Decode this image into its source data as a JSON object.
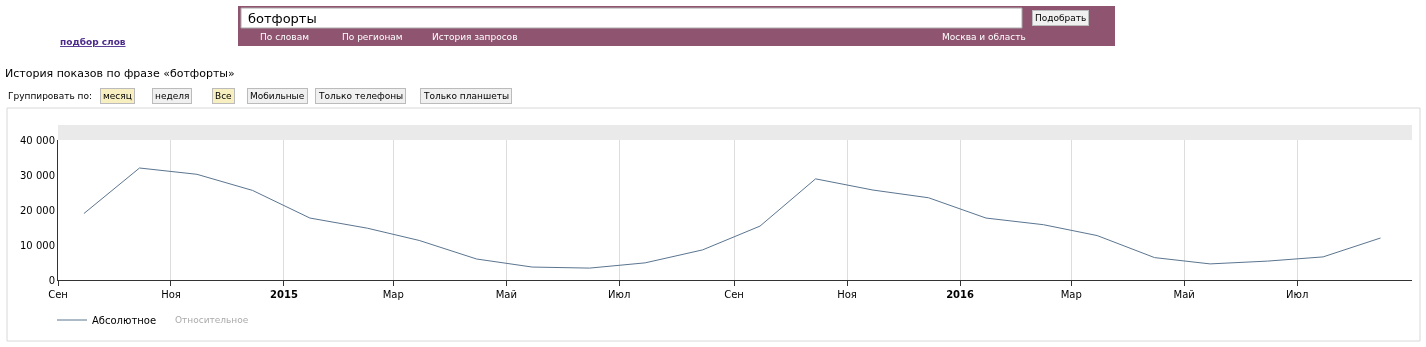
{
  "chart_data": {
    "type": "line",
    "title": "История показов по фразе «ботфорты»",
    "x": [
      "2014-09-15",
      "2014-10-15",
      "2014-11-15",
      "2014-12-15",
      "2015-01-15",
      "2015-02-15",
      "2015-03-15",
      "2015-04-15",
      "2015-05-15",
      "2015-06-15",
      "2015-07-15",
      "2015-08-15",
      "2015-09-15",
      "2015-10-15",
      "2015-11-15",
      "2015-12-15",
      "2016-01-15",
      "2016-02-15",
      "2016-03-15",
      "2016-04-15",
      "2016-05-15",
      "2016-06-15",
      "2016-07-15",
      "2016-08-15"
    ],
    "series": [
      {
        "name": "Абсолютное",
        "color": "#5b7590",
        "values": [
          19000,
          32000,
          30200,
          25600,
          17700,
          14800,
          11300,
          6000,
          3700,
          3400,
          4900,
          8600,
          15400,
          28900,
          25700,
          23500,
          17700,
          15800,
          12700,
          6400,
          4600,
          5400,
          6600,
          12000
        ]
      }
    ],
    "xlim": [
      "2014-09-01",
      "2016-09-01"
    ],
    "xticks": [
      {
        "value": "2014-09-01",
        "label": "Сен"
      },
      {
        "value": "2014-11-01",
        "label": "Ноя"
      },
      {
        "value": "2015-01-01",
        "label": "2015"
      },
      {
        "value": "2015-03-01",
        "label": "Мар"
      },
      {
        "value": "2015-05-01",
        "label": "Май"
      },
      {
        "value": "2015-07-01",
        "label": "Июл"
      },
      {
        "value": "2015-09-01",
        "label": "Сен"
      },
      {
        "value": "2015-11-01",
        "label": "Ноя"
      },
      {
        "value": "2016-01-01",
        "label": "2016"
      },
      {
        "value": "2016-03-01",
        "label": "Мар"
      },
      {
        "value": "2016-05-01",
        "label": "Май"
      },
      {
        "value": "2016-07-01",
        "label": "Июл"
      }
    ],
    "ylim": [
      0,
      40000
    ],
    "yticks": [
      {
        "value": 0,
        "label": "0"
      },
      {
        "value": 10000,
        "label": "10 000"
      },
      {
        "value": 20000,
        "label": "20 000"
      },
      {
        "value": 30000,
        "label": "30 000"
      },
      {
        "value": 40000,
        "label": "40 000"
      }
    ],
    "grid": "x",
    "legend": "bottom left",
    "marker": "none",
    "line_style": "solid",
    "annotations": [
      "подбор слов",
      "ботфорты",
      "По словам",
      "По регионам",
      "История запросов",
      "Москва и область",
      "Подобрать",
      "Группировать по:",
      "месяц",
      "неделя",
      "Все",
      "Мобильные",
      "Только телефоны",
      "Только планшеты",
      "Относительное"
    ]
  }
}
